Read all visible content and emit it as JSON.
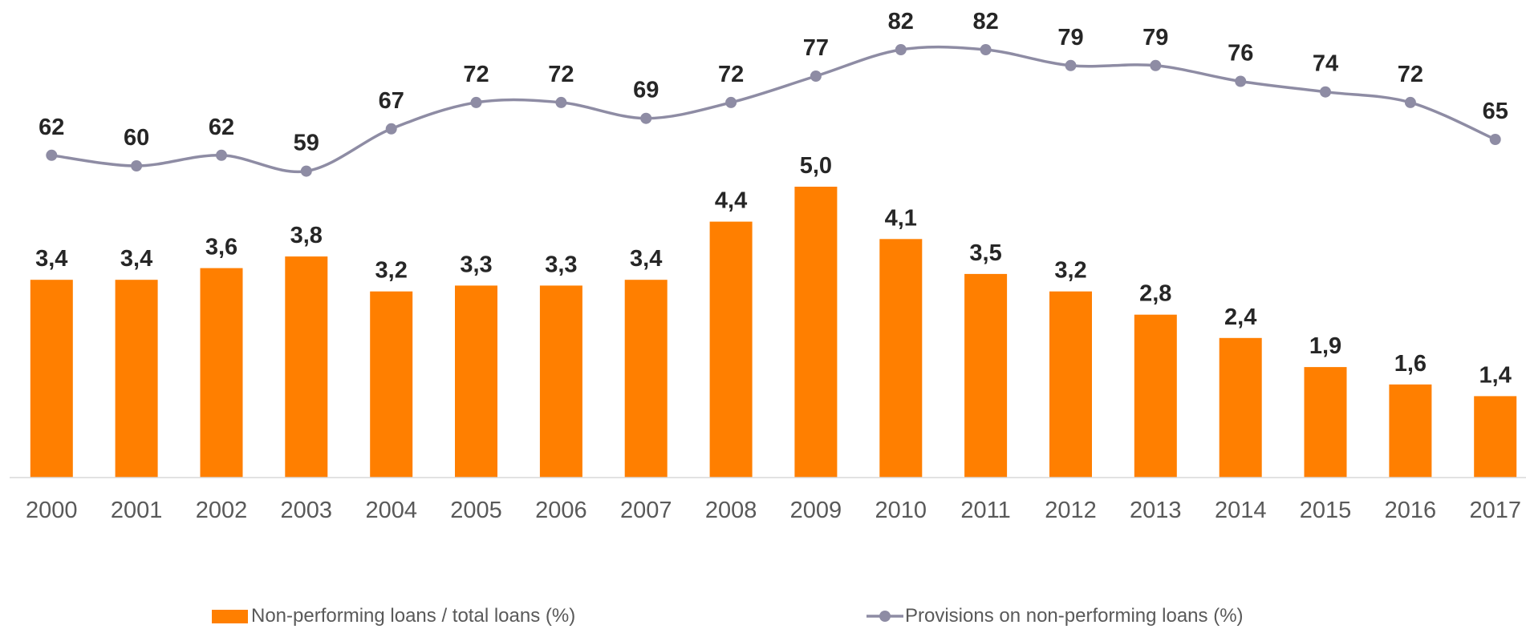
{
  "chart_data": {
    "type": "bar",
    "title": "",
    "xlabel": "",
    "ylabel": "",
    "grid": false,
    "legend": "bottom",
    "categories": [
      "2000",
      "2001",
      "2002",
      "2003",
      "2004",
      "2005",
      "2006",
      "2007",
      "2008",
      "2009",
      "2010",
      "2011",
      "2012",
      "2013",
      "2014",
      "2015",
      "2016",
      "2017"
    ],
    "series": [
      {
        "name": "Non-performing loans / total loans (%)",
        "type": "bar",
        "color": "#FF7F00",
        "values": [
          3.4,
          3.4,
          3.6,
          3.8,
          3.2,
          3.3,
          3.3,
          3.4,
          4.4,
          5.0,
          4.1,
          3.5,
          3.2,
          2.8,
          2.4,
          1.9,
          1.6,
          1.4
        ],
        "data_labels": [
          "3,4",
          "3,4",
          "3,6",
          "3,8",
          "3,2",
          "3,3",
          "3,3",
          "3,4",
          "4,4",
          "5,0",
          "4,1",
          "3,5",
          "3,2",
          "2,8",
          "2,4",
          "1,9",
          "1,6",
          "1,4"
        ]
      },
      {
        "name": "Provisions on non-performing loans (%)",
        "type": "line",
        "color": "#8E8CA4",
        "values": [
          62,
          60,
          62,
          59,
          67,
          72,
          72,
          69,
          72,
          77,
          82,
          82,
          79,
          79,
          76,
          74,
          72,
          65
        ],
        "data_labels": [
          "62",
          "60",
          "62",
          "59",
          "67",
          "72",
          "72",
          "69",
          "72",
          "77",
          "82",
          "82",
          "79",
          "79",
          "76",
          "74",
          "72",
          "65"
        ]
      }
    ]
  }
}
